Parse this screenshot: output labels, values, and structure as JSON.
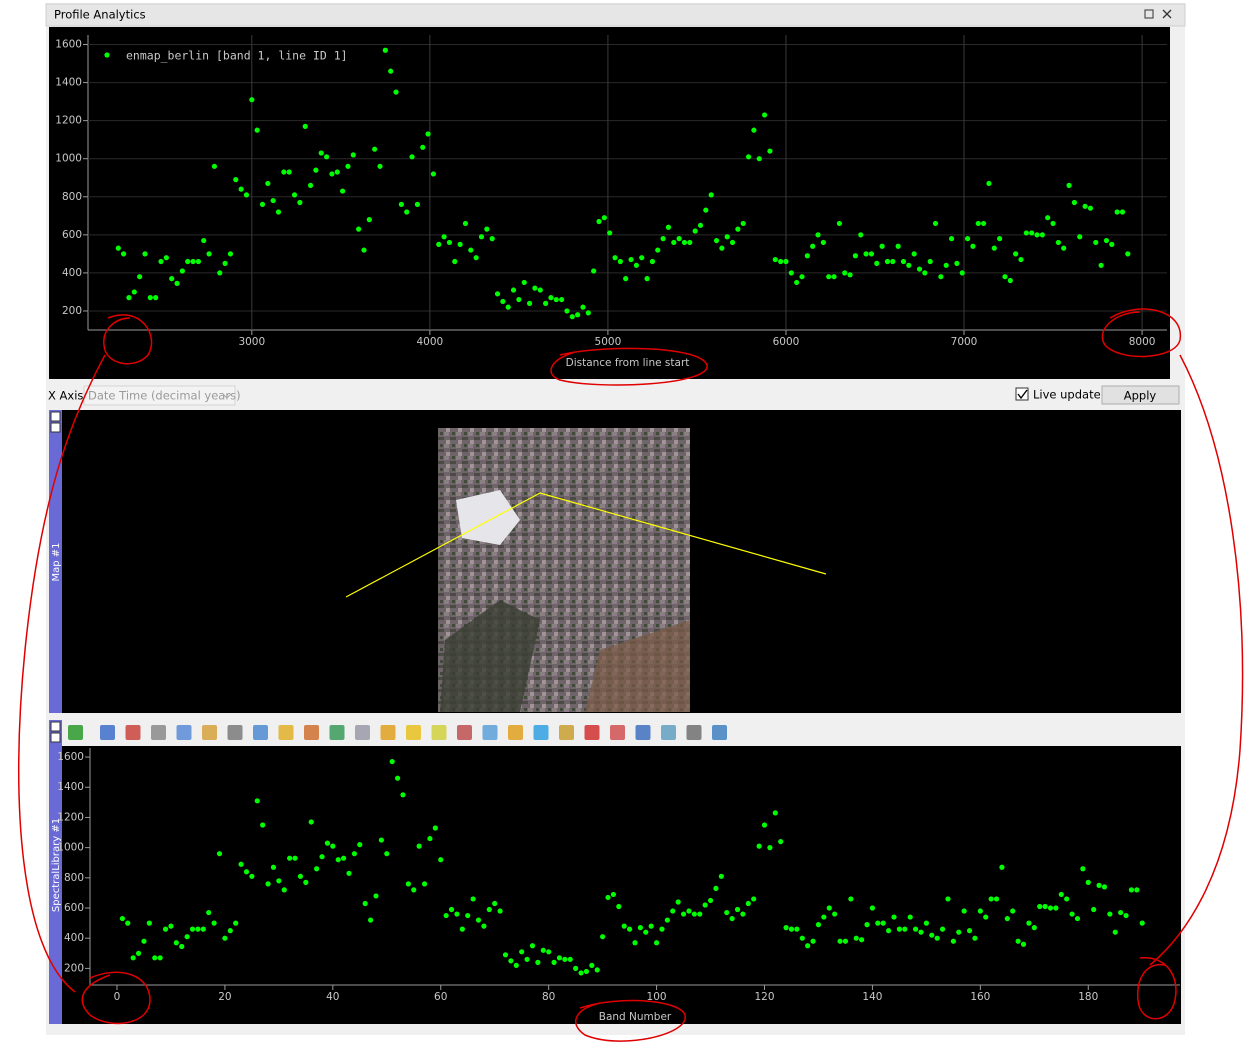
{
  "window": {
    "title": "Profile Analytics"
  },
  "controls": {
    "x_axis_label": "X Axis",
    "x_axis_value": "Date Time (decimal years)",
    "live_update": "Live update",
    "live_update_checked": true,
    "apply": "Apply"
  },
  "map": {
    "title": "Map #1"
  },
  "spectral_library": {
    "title": "SpectralLibrary #1"
  },
  "chart_data": [
    {
      "type": "scatter",
      "xlabel": "Distance from line start",
      "grid": true,
      "legend": "upper left",
      "xlim": [
        2080,
        8140
      ],
      "ylim": [
        100,
        1650
      ],
      "xticks": [
        3000,
        4000,
        5000,
        6000,
        7000,
        8000
      ],
      "yticks": [
        200,
        400,
        600,
        800,
        1000,
        1200,
        1400,
        1600
      ],
      "x": [
        2250,
        2280,
        2310,
        2340,
        2370,
        2400,
        2430,
        2460,
        2490,
        2520,
        2550,
        2580,
        2610,
        2640,
        2670,
        2700,
        2730,
        2760,
        2790,
        2820,
        2850,
        2880,
        2910,
        2940,
        2970,
        3000,
        3030,
        3060,
        3090,
        3120,
        3150,
        3180,
        3210,
        3240,
        3270,
        3300,
        3330,
        3360,
        3390,
        3420,
        3450,
        3480,
        3510,
        3540,
        3570,
        3600,
        3630,
        3660,
        3690,
        3720,
        3750,
        3780,
        3810,
        3840,
        3870,
        3900,
        3930,
        3960,
        3990,
        4020,
        4050,
        4080,
        4110,
        4140,
        4170,
        4200,
        4230,
        4260,
        4290,
        4320,
        4350,
        4380,
        4410,
        4440,
        4470,
        4500,
        4530,
        4560,
        4590,
        4620,
        4650,
        4680,
        4710,
        4740,
        4770,
        4800,
        4830,
        4860,
        4890,
        4920,
        4950,
        4980,
        5010,
        5040,
        5070,
        5100,
        5130,
        5160,
        5190,
        5220,
        5250,
        5280,
        5310,
        5340,
        5370,
        5400,
        5430,
        5460,
        5490,
        5520,
        5550,
        5580,
        5610,
        5640,
        5670,
        5700,
        5730,
        5760,
        5790,
        5820,
        5850,
        5880,
        5910,
        5940,
        5970,
        6000,
        6030,
        6060,
        6090,
        6120,
        6150,
        6180,
        6210,
        6240,
        6270,
        6300,
        6330,
        6360,
        6390,
        6420,
        6450,
        6480,
        6510,
        6540,
        6570,
        6600,
        6630,
        6660,
        6690,
        6720,
        6750,
        6780,
        6810,
        6840,
        6870,
        6900,
        6930,
        6960,
        6990,
        7020,
        7050,
        7080,
        7110,
        7140,
        7170,
        7200,
        7230,
        7260,
        7290,
        7320,
        7350,
        7380,
        7410,
        7440,
        7470,
        7500,
        7530,
        7560,
        7590,
        7620,
        7650,
        7680,
        7710,
        7740,
        7770,
        7800,
        7830,
        7860,
        7890,
        7920
      ],
      "series": [
        {
          "name": "enmap_berlin [band 1, line ID 1]",
          "color": "#00ff00",
          "values": [
            530,
            500,
            270,
            300,
            380,
            500,
            270,
            270,
            460,
            480,
            370,
            345,
            410,
            460,
            460,
            460,
            570,
            500,
            960,
            400,
            450,
            500,
            890,
            840,
            810,
            1310,
            1150,
            760,
            870,
            780,
            720,
            930,
            930,
            810,
            770,
            1170,
            860,
            940,
            1030,
            1010,
            920,
            930,
            830,
            960,
            1020,
            630,
            520,
            680,
            1050,
            960,
            1570,
            1460,
            1350,
            760,
            720,
            1010,
            760,
            1060,
            1130,
            920,
            550,
            590,
            560,
            460,
            550,
            660,
            520,
            480,
            590,
            630,
            580,
            290,
            250,
            220,
            310,
            260,
            350,
            240,
            320,
            310,
            240,
            270,
            260,
            260,
            200,
            170,
            180,
            220,
            190,
            410,
            670,
            690,
            610,
            480,
            460,
            370,
            470,
            440,
            480,
            370,
            460,
            520,
            580,
            640,
            560,
            580,
            560,
            560,
            620,
            650,
            730,
            810,
            570,
            530,
            590,
            560,
            630,
            660,
            1010,
            1150,
            1000,
            1230,
            1040,
            470,
            460,
            460,
            400,
            350,
            380,
            490,
            540,
            600,
            560,
            380,
            380,
            660,
            400,
            390,
            490,
            600,
            500,
            500,
            450,
            540,
            460,
            460,
            540,
            460,
            440,
            500,
            420,
            400,
            460,
            660,
            380,
            440,
            580,
            450,
            400,
            580,
            540,
            660,
            660,
            870,
            530,
            580,
            380,
            360,
            500,
            470,
            610,
            610,
            600,
            600,
            690,
            660,
            560,
            530,
            860,
            770,
            590,
            750,
            740,
            560,
            440,
            570,
            550,
            720,
            720,
            500
          ]
        }
      ]
    },
    {
      "type": "scatter",
      "xlabel": "Band Number",
      "grid": false,
      "xlim": [
        -5,
        197
      ],
      "ylim": [
        90,
        1660
      ],
      "xticks": [
        0,
        20,
        40,
        60,
        80,
        100,
        120,
        140,
        160,
        180
      ],
      "yticks": [
        200,
        400,
        600,
        800,
        1000,
        1200,
        1400,
        1600
      ],
      "x": [
        1,
        2,
        3,
        4,
        5,
        6,
        7,
        8,
        9,
        10,
        11,
        12,
        13,
        14,
        15,
        16,
        17,
        18,
        19,
        20,
        21,
        22,
        23,
        24,
        25,
        26,
        27,
        28,
        29,
        30,
        31,
        32,
        33,
        34,
        35,
        36,
        37,
        38,
        39,
        40,
        41,
        42,
        43,
        44,
        45,
        46,
        47,
        48,
        49,
        50,
        51,
        52,
        53,
        54,
        55,
        56,
        57,
        58,
        59,
        60,
        61,
        62,
        63,
        64,
        65,
        66,
        67,
        68,
        69,
        70,
        71,
        72,
        73,
        74,
        75,
        76,
        77,
        78,
        79,
        80,
        81,
        82,
        83,
        84,
        85,
        86,
        87,
        88,
        89,
        90,
        91,
        92,
        93,
        94,
        95,
        96,
        97,
        98,
        99,
        100,
        101,
        102,
        103,
        104,
        105,
        106,
        107,
        108,
        109,
        110,
        111,
        112,
        113,
        114,
        115,
        116,
        117,
        118,
        119,
        120,
        121,
        122,
        123,
        124,
        125,
        126,
        127,
        128,
        129,
        130,
        131,
        132,
        133,
        134,
        135,
        136,
        137,
        138,
        139,
        140,
        141,
        142,
        143,
        144,
        145,
        146,
        147,
        148,
        149,
        150,
        151,
        152,
        153,
        154,
        155,
        156,
        157,
        158,
        159,
        160,
        161,
        162,
        163,
        164,
        165,
        166,
        167,
        168,
        169,
        170,
        171,
        172,
        173,
        174,
        175,
        176,
        177,
        178,
        179,
        180,
        181,
        182,
        183,
        184,
        185,
        186,
        187,
        188,
        189,
        190
      ],
      "series": [
        {
          "color": "#00ff00",
          "values": [
            530,
            500,
            270,
            300,
            380,
            500,
            270,
            270,
            460,
            480,
            370,
            345,
            410,
            460,
            460,
            460,
            570,
            500,
            960,
            400,
            450,
            500,
            890,
            840,
            810,
            1310,
            1150,
            760,
            870,
            780,
            720,
            930,
            930,
            810,
            770,
            1170,
            860,
            940,
            1030,
            1010,
            920,
            930,
            830,
            960,
            1020,
            630,
            520,
            680,
            1050,
            960,
            1570,
            1460,
            1350,
            760,
            720,
            1010,
            760,
            1060,
            1130,
            920,
            550,
            590,
            560,
            460,
            550,
            660,
            520,
            480,
            590,
            630,
            580,
            290,
            250,
            220,
            310,
            260,
            350,
            240,
            320,
            310,
            240,
            270,
            260,
            260,
            200,
            170,
            180,
            220,
            190,
            410,
            670,
            690,
            610,
            480,
            460,
            370,
            470,
            440,
            480,
            370,
            460,
            520,
            580,
            640,
            560,
            580,
            560,
            560,
            620,
            650,
            730,
            810,
            570,
            530,
            590,
            560,
            630,
            660,
            1010,
            1150,
            1000,
            1230,
            1040,
            470,
            460,
            460,
            400,
            350,
            380,
            490,
            540,
            600,
            560,
            380,
            380,
            660,
            400,
            390,
            490,
            600,
            500,
            500,
            450,
            540,
            460,
            460,
            540,
            460,
            440,
            500,
            420,
            400,
            460,
            660,
            380,
            440,
            580,
            450,
            400,
            580,
            540,
            660,
            660,
            870,
            530,
            580,
            380,
            360,
            500,
            470,
            610,
            610,
            600,
            600,
            690,
            660,
            560,
            530,
            860,
            770,
            590,
            750,
            740,
            560,
            440,
            570,
            550,
            720,
            720,
            500
          ]
        }
      ]
    }
  ]
}
